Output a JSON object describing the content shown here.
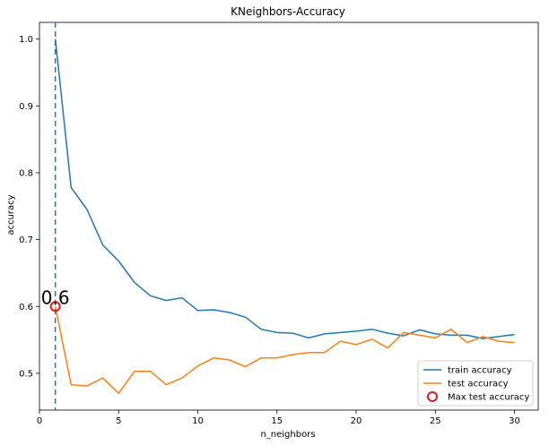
{
  "chart_data": {
    "type": "line",
    "title": "KNeighbors-Accuracy",
    "xlabel": "n_neighbors",
    "ylabel": "accuracy",
    "xlim": [
      0,
      31.5
    ],
    "ylim": [
      0.445,
      1.025
    ],
    "xticks": [
      0,
      5,
      10,
      15,
      20,
      25,
      30
    ],
    "xtick_labels": [
      "0",
      "5",
      "10",
      "15",
      "20",
      "25",
      "30"
    ],
    "yticks": [
      0.5,
      0.6,
      0.7,
      0.8,
      0.9,
      1.0
    ],
    "ytick_labels": [
      "0.5",
      "0.6",
      "0.7",
      "0.8",
      "0.9",
      "1.0"
    ],
    "grid": false,
    "legend_position": "lower-right",
    "x": [
      1,
      2,
      3,
      4,
      5,
      6,
      7,
      8,
      9,
      10,
      11,
      12,
      13,
      14,
      15,
      16,
      17,
      18,
      19,
      20,
      21,
      22,
      23,
      24,
      25,
      26,
      27,
      28,
      29,
      30
    ],
    "series": [
      {
        "name": "train accuracy",
        "color": "#1f77b4",
        "values": [
          1.0,
          0.778,
          0.745,
          0.692,
          0.668,
          0.636,
          0.616,
          0.609,
          0.613,
          0.594,
          0.595,
          0.591,
          0.584,
          0.566,
          0.561,
          0.56,
          0.553,
          0.559,
          0.561,
          0.563,
          0.566,
          0.56,
          0.556,
          0.565,
          0.559,
          0.557,
          0.557,
          0.552,
          0.555,
          0.558
        ]
      },
      {
        "name": "test accuracy",
        "color": "#ff7f0e",
        "values": [
          0.6,
          0.483,
          0.481,
          0.493,
          0.47,
          0.503,
          0.503,
          0.483,
          0.493,
          0.511,
          0.523,
          0.52,
          0.51,
          0.523,
          0.523,
          0.528,
          0.531,
          0.531,
          0.548,
          0.543,
          0.551,
          0.538,
          0.561,
          0.557,
          0.553,
          0.566,
          0.546,
          0.555,
          0.548,
          0.546
        ]
      }
    ],
    "max_marker": {
      "name": "Max test accuracy",
      "x": 1,
      "y": 0.6,
      "color": "#e31a1c",
      "annotation": "0.6"
    },
    "vline": {
      "x": 1,
      "color": "#1f77b4",
      "style": "dashed"
    }
  }
}
